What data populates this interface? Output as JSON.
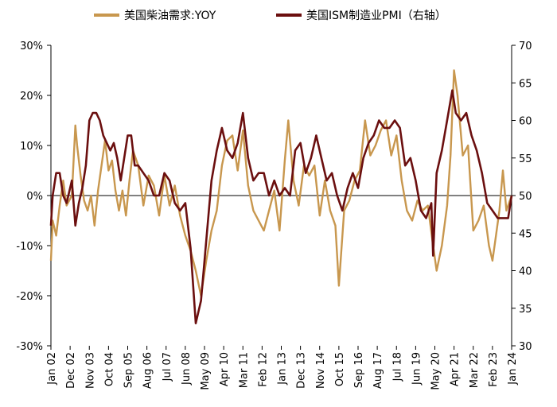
{
  "chart_data": {
    "type": "line",
    "legend": {
      "placement": "top"
    },
    "colors": {
      "diesel": "#C8974E",
      "pmi": "#6B0F0F"
    },
    "left_axis": {
      "ticks": [
        "30%",
        "20%",
        "10%",
        "0%",
        "-10%",
        "-20%",
        "-30%"
      ],
      "range": [
        -30,
        30
      ]
    },
    "right_axis": {
      "ticks": [
        "70",
        "65",
        "60",
        "55",
        "50",
        "45",
        "40",
        "35",
        "30"
      ],
      "range": [
        30,
        70
      ]
    },
    "x_axis": {
      "range": [
        "2002-01",
        "2024-01"
      ],
      "ticks": [
        {
          "label": "Jan 02",
          "date": "2002-01"
        },
        {
          "label": "Dec 02",
          "date": "2002-12"
        },
        {
          "label": "Nov 03",
          "date": "2003-11"
        },
        {
          "label": "Oct 04",
          "date": "2004-10"
        },
        {
          "label": "Sep 05",
          "date": "2005-09"
        },
        {
          "label": "Aug 06",
          "date": "2006-08"
        },
        {
          "label": "Jul 07",
          "date": "2007-07"
        },
        {
          "label": "Jun 08",
          "date": "2008-06"
        },
        {
          "label": "May 09",
          "date": "2009-05"
        },
        {
          "label": "Apr 10",
          "date": "2010-04"
        },
        {
          "label": "Mar 11",
          "date": "2011-03"
        },
        {
          "label": "Feb 12",
          "date": "2012-02"
        },
        {
          "label": "Jan 13",
          "date": "2013-01"
        },
        {
          "label": "Dec 13",
          "date": "2013-12"
        },
        {
          "label": "Nov 14",
          "date": "2014-11"
        },
        {
          "label": "Oct 15",
          "date": "2015-10"
        },
        {
          "label": "Sep 16",
          "date": "2016-09"
        },
        {
          "label": "Aug 17",
          "date": "2017-08"
        },
        {
          "label": "Jul 18",
          "date": "2018-07"
        },
        {
          "label": "Jun 19",
          "date": "2019-06"
        },
        {
          "label": "May 20",
          "date": "2020-05"
        },
        {
          "label": "Apr 21",
          "date": "2021-04"
        },
        {
          "label": "Mar 22",
          "date": "2022-03"
        },
        {
          "label": "Feb 23",
          "date": "2023-02"
        },
        {
          "label": "Jan 24",
          "date": "2024-01"
        }
      ]
    },
    "series": [
      {
        "name": "美国柴油需求:YOY",
        "axis": "left",
        "points": [
          [
            "2002-01",
            -13
          ],
          [
            "2002-02",
            -5
          ],
          [
            "2002-04",
            -8
          ],
          [
            "2002-06",
            -2
          ],
          [
            "2002-08",
            3
          ],
          [
            "2002-10",
            -2
          ],
          [
            "2003-01",
            0
          ],
          [
            "2003-03",
            14
          ],
          [
            "2003-04",
            10
          ],
          [
            "2003-06",
            4
          ],
          [
            "2003-08",
            -1
          ],
          [
            "2003-10",
            -3
          ],
          [
            "2003-12",
            0
          ],
          [
            "2004-01",
            -3
          ],
          [
            "2004-02",
            -6
          ],
          [
            "2004-04",
            1
          ],
          [
            "2004-06",
            6
          ],
          [
            "2004-08",
            11
          ],
          [
            "2004-10",
            5
          ],
          [
            "2004-12",
            7
          ],
          [
            "2005-02",
            1
          ],
          [
            "2005-04",
            -3
          ],
          [
            "2005-06",
            1
          ],
          [
            "2005-08",
            -4
          ],
          [
            "2005-10",
            3
          ],
          [
            "2005-12",
            9
          ],
          [
            "2006-03",
            6
          ],
          [
            "2006-06",
            -2
          ],
          [
            "2006-09",
            4
          ],
          [
            "2006-12",
            2
          ],
          [
            "2007-03",
            -4
          ],
          [
            "2007-06",
            4
          ],
          [
            "2007-09",
            -2
          ],
          [
            "2007-12",
            2
          ],
          [
            "2008-03",
            -4
          ],
          [
            "2008-06",
            -8
          ],
          [
            "2008-09",
            -11
          ],
          [
            "2008-12",
            -15
          ],
          [
            "2009-03",
            -20
          ],
          [
            "2009-06",
            -13
          ],
          [
            "2009-09",
            -7
          ],
          [
            "2009-12",
            -3
          ],
          [
            "2010-03",
            6
          ],
          [
            "2010-06",
            11
          ],
          [
            "2010-09",
            12
          ],
          [
            "2010-12",
            5
          ],
          [
            "2011-03",
            13
          ],
          [
            "2011-06",
            2
          ],
          [
            "2011-09",
            -3
          ],
          [
            "2011-12",
            -5
          ],
          [
            "2012-03",
            -7
          ],
          [
            "2012-06",
            -3
          ],
          [
            "2012-09",
            1
          ],
          [
            "2012-12",
            -7
          ],
          [
            "2013-03",
            7
          ],
          [
            "2013-05",
            15
          ],
          [
            "2013-08",
            3
          ],
          [
            "2013-11",
            -2
          ],
          [
            "2014-02",
            6
          ],
          [
            "2014-05",
            4
          ],
          [
            "2014-08",
            6
          ],
          [
            "2014-11",
            -4
          ],
          [
            "2015-02",
            3
          ],
          [
            "2015-05",
            -3
          ],
          [
            "2015-08",
            -6
          ],
          [
            "2015-10",
            -18
          ],
          [
            "2016-01",
            -3
          ],
          [
            "2016-04",
            -1
          ],
          [
            "2016-07",
            3
          ],
          [
            "2016-10",
            5
          ],
          [
            "2017-01",
            15
          ],
          [
            "2017-04",
            8
          ],
          [
            "2017-07",
            10
          ],
          [
            "2017-10",
            13
          ],
          [
            "2018-01",
            15
          ],
          [
            "2018-04",
            8
          ],
          [
            "2018-07",
            12
          ],
          [
            "2018-10",
            3
          ],
          [
            "2019-01",
            -3
          ],
          [
            "2019-04",
            -5
          ],
          [
            "2019-07",
            -1
          ],
          [
            "2019-10",
            -3
          ],
          [
            "2020-01",
            -2
          ],
          [
            "2020-04",
            -10
          ],
          [
            "2020-06",
            -15
          ],
          [
            "2020-09",
            -10
          ],
          [
            "2020-12",
            -2
          ],
          [
            "2021-02",
            8
          ],
          [
            "2021-04",
            25
          ],
          [
            "2021-06",
            20
          ],
          [
            "2021-09",
            8
          ],
          [
            "2021-12",
            10
          ],
          [
            "2022-03",
            -7
          ],
          [
            "2022-06",
            -5
          ],
          [
            "2022-09",
            -2
          ],
          [
            "2022-12",
            -10
          ],
          [
            "2023-02",
            -13
          ],
          [
            "2023-04",
            -8
          ],
          [
            "2023-06",
            -3
          ],
          [
            "2023-08",
            5
          ],
          [
            "2023-10",
            -3
          ],
          [
            "2024-01",
            0
          ]
        ]
      },
      {
        "name": "美国ISM制造业PMI（右轴）",
        "axis": "right",
        "points": [
          [
            "2002-01",
            46
          ],
          [
            "2002-02",
            50
          ],
          [
            "2002-04",
            53
          ],
          [
            "2002-06",
            53
          ],
          [
            "2002-08",
            50
          ],
          [
            "2002-10",
            49
          ],
          [
            "2003-01",
            52
          ],
          [
            "2003-03",
            46
          ],
          [
            "2003-05",
            49
          ],
          [
            "2003-07",
            51
          ],
          [
            "2003-09",
            54
          ],
          [
            "2003-11",
            60
          ],
          [
            "2004-01",
            61
          ],
          [
            "2004-03",
            61
          ],
          [
            "2004-05",
            60
          ],
          [
            "2004-07",
            58
          ],
          [
            "2004-09",
            57
          ],
          [
            "2004-11",
            56
          ],
          [
            "2005-01",
            57
          ],
          [
            "2005-03",
            55
          ],
          [
            "2005-05",
            52
          ],
          [
            "2005-07",
            55
          ],
          [
            "2005-09",
            58
          ],
          [
            "2005-11",
            58
          ],
          [
            "2006-01",
            54
          ],
          [
            "2006-03",
            54
          ],
          [
            "2006-06",
            53
          ],
          [
            "2006-09",
            52
          ],
          [
            "2006-12",
            50
          ],
          [
            "2007-03",
            50
          ],
          [
            "2007-06",
            53
          ],
          [
            "2007-09",
            52
          ],
          [
            "2007-12",
            49
          ],
          [
            "2008-03",
            48
          ],
          [
            "2008-06",
            49
          ],
          [
            "2008-09",
            43
          ],
          [
            "2008-12",
            33
          ],
          [
            "2009-03",
            36
          ],
          [
            "2009-06",
            44
          ],
          [
            "2009-09",
            52
          ],
          [
            "2009-12",
            56
          ],
          [
            "2010-03",
            59
          ],
          [
            "2010-06",
            56
          ],
          [
            "2010-09",
            55
          ],
          [
            "2010-12",
            57
          ],
          [
            "2011-03",
            61
          ],
          [
            "2011-06",
            55
          ],
          [
            "2011-09",
            52
          ],
          [
            "2011-12",
            53
          ],
          [
            "2012-03",
            53
          ],
          [
            "2012-06",
            50
          ],
          [
            "2012-09",
            52
          ],
          [
            "2012-12",
            50
          ],
          [
            "2013-03",
            51
          ],
          [
            "2013-06",
            50
          ],
          [
            "2013-09",
            56
          ],
          [
            "2013-12",
            57
          ],
          [
            "2014-03",
            53
          ],
          [
            "2014-06",
            55
          ],
          [
            "2014-09",
            58
          ],
          [
            "2014-12",
            55
          ],
          [
            "2015-03",
            52
          ],
          [
            "2015-06",
            53
          ],
          [
            "2015-09",
            50
          ],
          [
            "2015-12",
            48
          ],
          [
            "2016-03",
            51
          ],
          [
            "2016-06",
            53
          ],
          [
            "2016-09",
            51
          ],
          [
            "2016-12",
            55
          ],
          [
            "2017-03",
            57
          ],
          [
            "2017-06",
            58
          ],
          [
            "2017-09",
            60
          ],
          [
            "2017-12",
            59
          ],
          [
            "2018-03",
            59
          ],
          [
            "2018-06",
            60
          ],
          [
            "2018-09",
            59
          ],
          [
            "2018-12",
            54
          ],
          [
            "2019-03",
            55
          ],
          [
            "2019-06",
            52
          ],
          [
            "2019-09",
            48
          ],
          [
            "2019-12",
            47
          ],
          [
            "2020-03",
            49
          ],
          [
            "2020-04",
            42
          ],
          [
            "2020-06",
            53
          ],
          [
            "2020-09",
            56
          ],
          [
            "2020-12",
            60
          ],
          [
            "2021-03",
            64
          ],
          [
            "2021-05",
            61
          ],
          [
            "2021-08",
            60
          ],
          [
            "2021-11",
            61
          ],
          [
            "2022-02",
            58
          ],
          [
            "2022-05",
            56
          ],
          [
            "2022-08",
            53
          ],
          [
            "2022-11",
            49
          ],
          [
            "2023-02",
            48
          ],
          [
            "2023-05",
            47
          ],
          [
            "2023-08",
            47
          ],
          [
            "2023-11",
            47
          ],
          [
            "2024-01",
            50
          ]
        ]
      }
    ]
  }
}
